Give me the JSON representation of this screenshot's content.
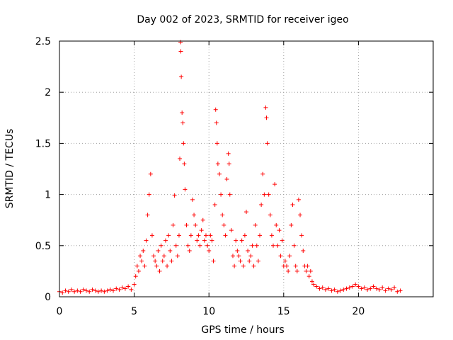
{
  "chart_data": {
    "type": "scatter",
    "title": "Day 002 of 2023, SRMTID for receiver igeo",
    "xlabel": "GPS time / hours",
    "ylabel": "SRMTID / TECUs",
    "xlim": [
      0,
      25
    ],
    "ylim": [
      0,
      2.5
    ],
    "x_ticks": [
      0,
      5,
      10,
      15,
      20
    ],
    "x_tick_labels": [
      "0",
      "5",
      "10",
      "15",
      "20"
    ],
    "y_ticks": [
      0,
      0.5,
      1,
      1.5,
      2,
      2.5
    ],
    "y_tick_labels": [
      "0",
      "0.5",
      "1",
      "1.5",
      "2",
      "2.5"
    ],
    "grid": true,
    "marker": "plus",
    "series": [
      {
        "name": "SRMTID",
        "color": "#ff0000",
        "points": [
          [
            0.0,
            0.05
          ],
          [
            0.2,
            0.04
          ],
          [
            0.4,
            0.06
          ],
          [
            0.6,
            0.05
          ],
          [
            0.8,
            0.07
          ],
          [
            1.0,
            0.05
          ],
          [
            1.2,
            0.06
          ],
          [
            1.4,
            0.05
          ],
          [
            1.6,
            0.07
          ],
          [
            1.8,
            0.06
          ],
          [
            2.0,
            0.05
          ],
          [
            2.2,
            0.07
          ],
          [
            2.4,
            0.06
          ],
          [
            2.6,
            0.05
          ],
          [
            2.8,
            0.06
          ],
          [
            3.0,
            0.05
          ],
          [
            3.2,
            0.06
          ],
          [
            3.4,
            0.07
          ],
          [
            3.6,
            0.06
          ],
          [
            3.8,
            0.08
          ],
          [
            4.0,
            0.07
          ],
          [
            4.2,
            0.09
          ],
          [
            4.4,
            0.08
          ],
          [
            4.6,
            0.1
          ],
          [
            4.8,
            0.07
          ],
          [
            5.0,
            0.12
          ],
          [
            5.1,
            0.2
          ],
          [
            5.2,
            0.3
          ],
          [
            5.3,
            0.25
          ],
          [
            5.4,
            0.4
          ],
          [
            5.5,
            0.35
          ],
          [
            5.6,
            0.45
          ],
          [
            5.7,
            0.3
          ],
          [
            5.8,
            0.55
          ],
          [
            5.9,
            0.8
          ],
          [
            6.0,
            1.0
          ],
          [
            6.1,
            1.2
          ],
          [
            6.2,
            0.6
          ],
          [
            6.3,
            0.4
          ],
          [
            6.4,
            0.35
          ],
          [
            6.5,
            0.3
          ],
          [
            6.6,
            0.45
          ],
          [
            6.7,
            0.25
          ],
          [
            6.8,
            0.5
          ],
          [
            6.9,
            0.35
          ],
          [
            7.0,
            0.4
          ],
          [
            7.1,
            0.55
          ],
          [
            7.2,
            0.3
          ],
          [
            7.3,
            0.6
          ],
          [
            7.4,
            0.45
          ],
          [
            7.5,
            0.35
          ],
          [
            7.6,
            0.7
          ],
          [
            7.7,
            0.99
          ],
          [
            7.8,
            0.5
          ],
          [
            7.9,
            0.4
          ],
          [
            8.0,
            0.6
          ],
          [
            8.05,
            1.35
          ],
          [
            8.1,
            2.49
          ],
          [
            8.12,
            2.4
          ],
          [
            8.15,
            2.15
          ],
          [
            8.2,
            1.8
          ],
          [
            8.25,
            1.7
          ],
          [
            8.3,
            1.5
          ],
          [
            8.35,
            1.3
          ],
          [
            8.4,
            1.05
          ],
          [
            8.5,
            0.7
          ],
          [
            8.6,
            0.5
          ],
          [
            8.7,
            0.45
          ],
          [
            8.8,
            0.6
          ],
          [
            8.9,
            0.95
          ],
          [
            9.0,
            0.8
          ],
          [
            9.1,
            0.7
          ],
          [
            9.2,
            0.55
          ],
          [
            9.3,
            0.6
          ],
          [
            9.4,
            0.5
          ],
          [
            9.5,
            0.65
          ],
          [
            9.6,
            0.75
          ],
          [
            9.7,
            0.55
          ],
          [
            9.8,
            0.6
          ],
          [
            9.9,
            0.5
          ],
          [
            10.0,
            0.45
          ],
          [
            10.1,
            0.6
          ],
          [
            10.2,
            0.55
          ],
          [
            10.3,
            0.35
          ],
          [
            10.4,
            0.9
          ],
          [
            10.45,
            1.83
          ],
          [
            10.5,
            1.7
          ],
          [
            10.55,
            1.5
          ],
          [
            10.6,
            1.3
          ],
          [
            10.7,
            1.2
          ],
          [
            10.8,
            1.0
          ],
          [
            10.9,
            0.8
          ],
          [
            11.0,
            0.7
          ],
          [
            11.1,
            0.6
          ],
          [
            11.2,
            1.15
          ],
          [
            11.3,
            1.4
          ],
          [
            11.35,
            1.3
          ],
          [
            11.4,
            1.0
          ],
          [
            11.5,
            0.65
          ],
          [
            11.6,
            0.4
          ],
          [
            11.7,
            0.3
          ],
          [
            11.8,
            0.55
          ],
          [
            11.9,
            0.45
          ],
          [
            12.0,
            0.4
          ],
          [
            12.1,
            0.35
          ],
          [
            12.2,
            0.55
          ],
          [
            12.3,
            0.3
          ],
          [
            12.4,
            0.6
          ],
          [
            12.5,
            0.83
          ],
          [
            12.6,
            0.45
          ],
          [
            12.7,
            0.35
          ],
          [
            12.8,
            0.4
          ],
          [
            12.9,
            0.5
          ],
          [
            13.0,
            0.3
          ],
          [
            13.1,
            0.7
          ],
          [
            13.2,
            0.5
          ],
          [
            13.3,
            0.35
          ],
          [
            13.4,
            0.6
          ],
          [
            13.5,
            0.9
          ],
          [
            13.6,
            1.2
          ],
          [
            13.7,
            1.0
          ],
          [
            13.8,
            1.85
          ],
          [
            13.85,
            1.75
          ],
          [
            13.9,
            1.5
          ],
          [
            14.0,
            1.0
          ],
          [
            14.1,
            0.8
          ],
          [
            14.2,
            0.6
          ],
          [
            14.3,
            0.5
          ],
          [
            14.4,
            1.1
          ],
          [
            14.5,
            0.7
          ],
          [
            14.6,
            0.5
          ],
          [
            14.7,
            0.65
          ],
          [
            14.8,
            0.4
          ],
          [
            14.9,
            0.55
          ],
          [
            15.0,
            0.3
          ],
          [
            15.1,
            0.35
          ],
          [
            15.2,
            0.3
          ],
          [
            15.3,
            0.25
          ],
          [
            15.4,
            0.4
          ],
          [
            15.5,
            0.7
          ],
          [
            15.6,
            0.9
          ],
          [
            15.7,
            0.5
          ],
          [
            15.8,
            0.3
          ],
          [
            15.9,
            0.25
          ],
          [
            16.0,
            0.95
          ],
          [
            16.1,
            0.8
          ],
          [
            16.2,
            0.6
          ],
          [
            16.3,
            0.45
          ],
          [
            16.4,
            0.3
          ],
          [
            16.5,
            0.25
          ],
          [
            16.6,
            0.3
          ],
          [
            16.7,
            0.2
          ],
          [
            16.8,
            0.25
          ],
          [
            16.9,
            0.15
          ],
          [
            17.0,
            0.12
          ],
          [
            17.2,
            0.1
          ],
          [
            17.4,
            0.08
          ],
          [
            17.6,
            0.09
          ],
          [
            17.8,
            0.07
          ],
          [
            18.0,
            0.08
          ],
          [
            18.2,
            0.06
          ],
          [
            18.4,
            0.07
          ],
          [
            18.6,
            0.05
          ],
          [
            18.8,
            0.06
          ],
          [
            19.0,
            0.07
          ],
          [
            19.2,
            0.08
          ],
          [
            19.4,
            0.09
          ],
          [
            19.6,
            0.1
          ],
          [
            19.8,
            0.12
          ],
          [
            20.0,
            0.1
          ],
          [
            20.2,
            0.08
          ],
          [
            20.4,
            0.09
          ],
          [
            20.6,
            0.07
          ],
          [
            20.8,
            0.08
          ],
          [
            21.0,
            0.1
          ],
          [
            21.2,
            0.08
          ],
          [
            21.4,
            0.07
          ],
          [
            21.6,
            0.09
          ],
          [
            21.8,
            0.06
          ],
          [
            22.0,
            0.08
          ],
          [
            22.2,
            0.07
          ],
          [
            22.4,
            0.09
          ],
          [
            22.6,
            0.05
          ],
          [
            22.8,
            0.06
          ]
        ]
      }
    ]
  }
}
